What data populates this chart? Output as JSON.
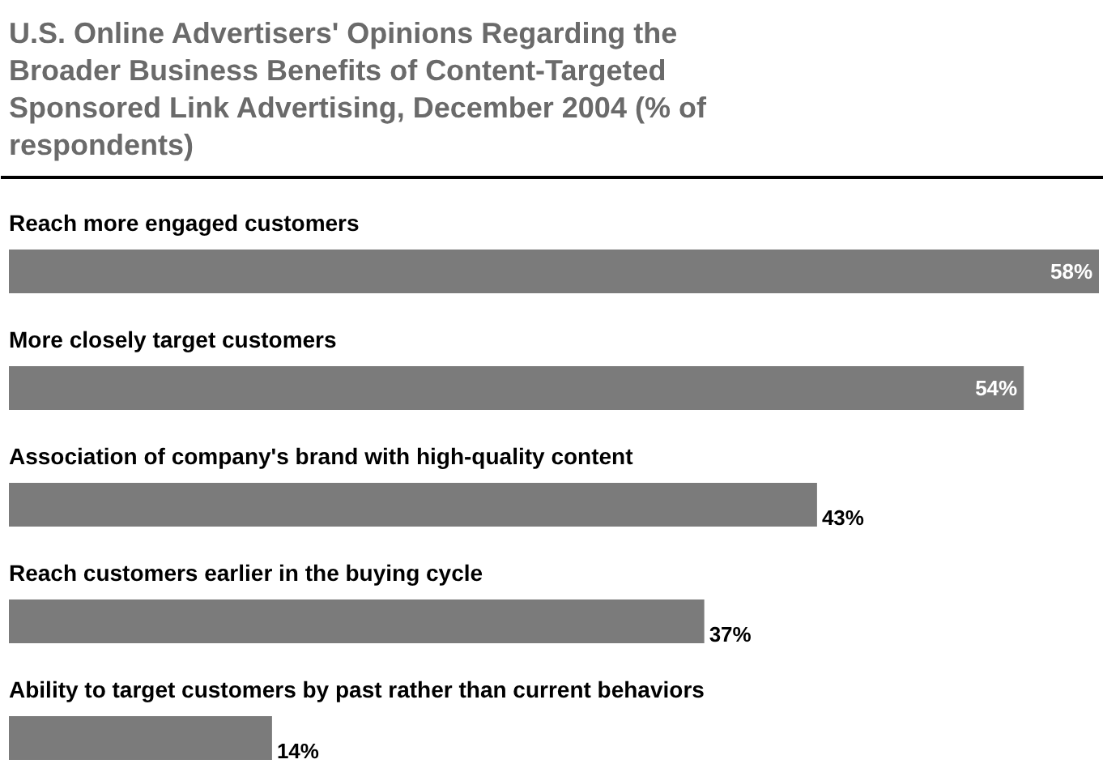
{
  "chart_data": {
    "type": "bar",
    "orientation": "horizontal",
    "title": "U.S. Online Advertisers' Opinions Regarding the Broader Business Benefits of Content-Targeted Sponsored Link Advertising, December 2004 (% of respondents)",
    "categories": [
      "Reach more engaged customers",
      "More closely target customers",
      "Association of company's brand with high-quality content",
      "Reach customers earlier in the buying cycle",
      "Ability to target customers by past rather than current behaviors"
    ],
    "values": [
      58,
      54,
      43,
      37,
      14
    ],
    "value_labels": [
      "58%",
      "54%",
      "43%",
      "37%",
      "14%"
    ],
    "color": "#7b7b7b"
  }
}
